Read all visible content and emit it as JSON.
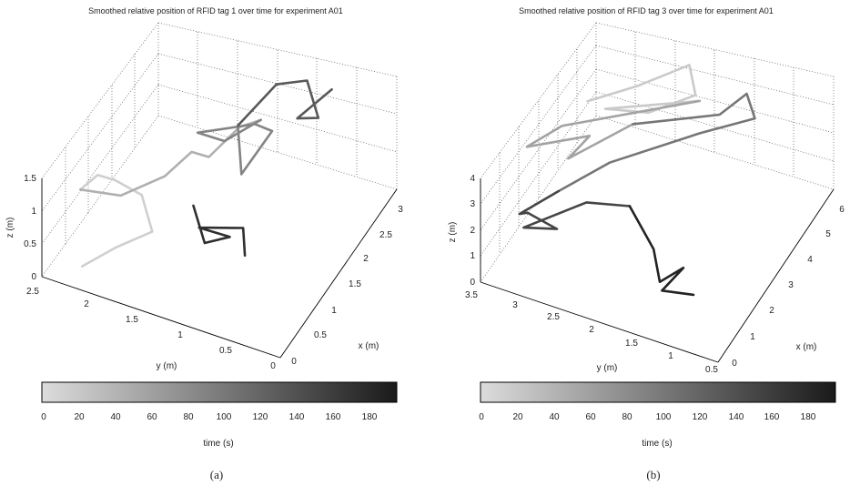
{
  "colors": {
    "colormap_start": "#dcdcdc",
    "colormap_end": "#1a1a1a"
  },
  "chart_data": [
    {
      "type": "line3d",
      "title": "Smoothed relative position of RFID tag 1 over time for experiment A01",
      "xlabel": "x (m)",
      "ylabel": "y (m)",
      "zlabel": "z (m)",
      "xlim": [
        0,
        3
      ],
      "ylim": [
        0,
        2.5
      ],
      "zlim": [
        0,
        1.5
      ],
      "xticks": [
        "0",
        "0.5",
        "1",
        "1.5",
        "2",
        "2.5",
        "3"
      ],
      "yticks": [
        "0",
        "0.5",
        "1",
        "1.5",
        "2",
        "2.5"
      ],
      "zticks": [
        "0",
        "0.5",
        "1",
        "1.5"
      ],
      "grid": true,
      "colorbar": {
        "label": "time (s)",
        "ticks": [
          "0",
          "20",
          "40",
          "60",
          "80",
          "100",
          "120",
          "140",
          "160",
          "180"
        ],
        "range": [
          0,
          190
        ]
      },
      "caption": "(a)",
      "series": [
        {
          "t": [
            0,
            5,
            10,
            14,
            18,
            22,
            26
          ],
          "points": [
            [
              0.3,
              2.2,
              0.05
            ],
            [
              0.7,
              2.0,
              0.1
            ],
            [
              1.0,
              1.75,
              0.2
            ],
            [
              1.1,
              1.9,
              0.6
            ],
            [
              0.9,
              2.1,
              0.9
            ],
            [
              0.7,
              2.2,
              1.1
            ],
            [
              0.5,
              2.3,
              1.0
            ]
          ]
        },
        {
          "t": [
            26,
            32,
            38,
            44,
            50,
            56,
            62
          ],
          "points": [
            [
              0.5,
              2.3,
              1.0
            ],
            [
              0.8,
              2.0,
              0.8
            ],
            [
              1.2,
              1.7,
              0.9
            ],
            [
              1.4,
              1.5,
              1.2
            ],
            [
              1.6,
              1.4,
              1.0
            ],
            [
              1.9,
              1.2,
              1.3
            ],
            [
              2.2,
              1.1,
              1.2
            ]
          ]
        },
        {
          "t": [
            62,
            70,
            78,
            86,
            94,
            102,
            110
          ],
          "points": [
            [
              2.2,
              1.1,
              1.2
            ],
            [
              2.0,
              1.4,
              0.9
            ],
            [
              1.8,
              1.6,
              1.1
            ],
            [
              2.3,
              1.2,
              1.0
            ],
            [
              2.0,
              0.9,
              1.3
            ],
            [
              1.7,
              1.1,
              0.8
            ],
            [
              2.1,
              1.3,
              1.1
            ]
          ]
        },
        {
          "t": [
            110,
            118,
            126,
            134,
            142,
            148
          ],
          "points": [
            [
              2.1,
              1.3,
              1.1
            ],
            [
              2.6,
              1.1,
              1.4
            ],
            [
              2.9,
              0.9,
              1.3
            ],
            [
              2.7,
              0.7,
              1.0
            ],
            [
              2.4,
              0.8,
              1.2
            ],
            [
              2.8,
              0.6,
              1.4
            ]
          ]
        },
        {
          "t": [
            148,
            156,
            164,
            172,
            180,
            190
          ],
          "points": [
            [
              1.2,
              1.4,
              0.6
            ],
            [
              1.0,
              1.2,
              0.3
            ],
            [
              1.4,
              1.1,
              0.1
            ],
            [
              1.1,
              1.3,
              0.4
            ],
            [
              1.5,
              1.0,
              0.2
            ],
            [
              1.3,
              0.9,
              0.0
            ]
          ]
        }
      ]
    },
    {
      "type": "line3d",
      "title": "Smoothed relative position of RFID tag 3 over time for experiment A01",
      "xlabel": "x (m)",
      "ylabel": "y (m)",
      "zlabel": "z (m)",
      "xlim": [
        0,
        6
      ],
      "ylim": [
        0.5,
        3.5
      ],
      "zlim": [
        0,
        4
      ],
      "xticks": [
        "0",
        "1",
        "2",
        "3",
        "4",
        "5",
        "6"
      ],
      "yticks": [
        "0.5",
        "1",
        "1.5",
        "2",
        "2.5",
        "3",
        "3.5"
      ],
      "zticks": [
        "0",
        "1",
        "2",
        "3",
        "4"
      ],
      "grid": true,
      "colorbar": {
        "label": "time (s)",
        "ticks": [
          "0",
          "20",
          "40",
          "60",
          "80",
          "100",
          "120",
          "140",
          "160",
          "180"
        ],
        "range": [
          0,
          190
        ]
      },
      "caption": "(b)",
      "series": [
        {
          "t": [
            0,
            6,
            12,
            18,
            24,
            30,
            36
          ],
          "points": [
            [
              3.5,
              3.0,
              3.6
            ],
            [
              4.5,
              2.6,
              3.5
            ],
            [
              5.5,
              2.2,
              3.6
            ],
            [
              5.0,
              2.0,
              3.2
            ],
            [
              4.2,
              2.4,
              3.0
            ],
            [
              3.6,
              2.8,
              3.4
            ],
            [
              4.8,
              1.9,
              3.3
            ]
          ]
        },
        {
          "t": [
            36,
            44,
            52,
            60,
            68,
            76
          ],
          "points": [
            [
              4.8,
              1.9,
              3.3
            ],
            [
              3.0,
              3.2,
              3.0
            ],
            [
              2.0,
              3.4,
              3.1
            ],
            [
              3.2,
              2.9,
              2.7
            ],
            [
              2.5,
              3.0,
              2.5
            ],
            [
              3.8,
              2.5,
              2.9
            ]
          ]
        },
        {
          "t": [
            76,
            84,
            92,
            100,
            108,
            116,
            124
          ],
          "points": [
            [
              3.8,
              2.5,
              2.9
            ],
            [
              4.6,
              1.6,
              3.3
            ],
            [
              5.6,
              1.5,
              3.1
            ],
            [
              5.2,
              1.3,
              2.8
            ],
            [
              4.4,
              1.8,
              2.6
            ],
            [
              3.0,
              2.6,
              2.2
            ],
            [
              2.0,
              3.0,
              1.8
            ]
          ]
        },
        {
          "t": [
            124,
            132,
            140,
            148,
            156,
            164,
            172
          ],
          "points": [
            [
              2.0,
              3.0,
              1.8
            ],
            [
              1.2,
              3.3,
              1.5
            ],
            [
              0.8,
              3.1,
              2.2
            ],
            [
              1.5,
              2.9,
              1.0
            ],
            [
              1.0,
              3.2,
              1.3
            ],
            [
              1.8,
              2.6,
              2.0
            ],
            [
              2.4,
              2.2,
              1.6
            ]
          ]
        },
        {
          "t": [
            172,
            176,
            180,
            184,
            188,
            190
          ],
          "points": [
            [
              2.4,
              2.2,
              1.6
            ],
            [
              2.0,
              1.8,
              0.8
            ],
            [
              1.5,
              1.6,
              0.3
            ],
            [
              1.9,
              1.4,
              0.6
            ],
            [
              1.2,
              1.5,
              0.4
            ],
            [
              1.6,
              1.2,
              0.1
            ]
          ]
        }
      ]
    }
  ]
}
